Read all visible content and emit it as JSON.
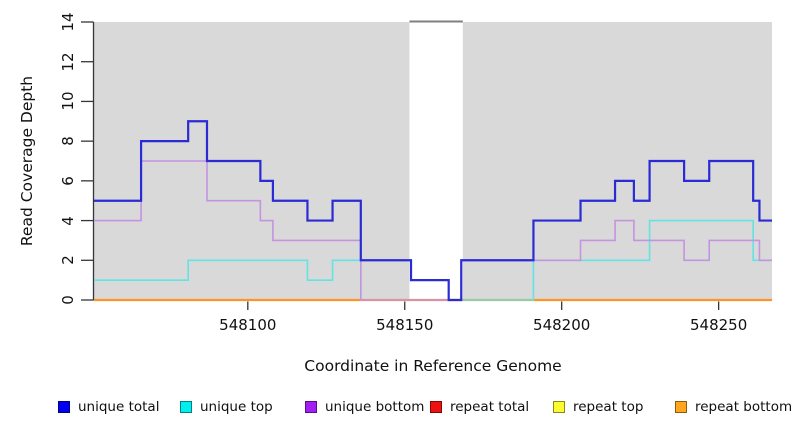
{
  "chart_data": {
    "type": "line",
    "subtype": "step-coverage",
    "title": "",
    "xlabel": "Coordinate in Reference Genome",
    "ylabel": "Read Coverage Depth",
    "xlim": [
      548051,
      548267
    ],
    "ylim": [
      0,
      14
    ],
    "yticks": [
      0,
      2,
      4,
      6,
      8,
      10,
      12,
      14
    ],
    "xticks": [
      548100,
      548150,
      548200,
      548250
    ],
    "grid": false,
    "plot_bg": "#d9d9d9",
    "gap_band": {
      "from": 548151.5,
      "to": 548168.5,
      "color": "#ffffff",
      "top_border": "#7f7f7f"
    },
    "axis_color": "#333639",
    "legend_position": "bottom",
    "series": [
      {
        "name": "unique total",
        "color": "#2b2bd5",
        "legend_color": "#0000f0",
        "width": 2.2,
        "steps": [
          [
            548051,
            5
          ],
          [
            548066,
            8
          ],
          [
            548081,
            9
          ],
          [
            548087,
            7
          ],
          [
            548104,
            6
          ],
          [
            548108,
            5
          ],
          [
            548119,
            4
          ],
          [
            548127,
            5
          ],
          [
            548136,
            2
          ],
          [
            548152,
            1
          ],
          [
            548164,
            0
          ],
          [
            548168,
            2
          ],
          [
            548191,
            4
          ],
          [
            548206,
            5
          ],
          [
            548217,
            6
          ],
          [
            548223,
            5
          ],
          [
            548228,
            7
          ],
          [
            548239,
            6
          ],
          [
            548247,
            7
          ],
          [
            548261,
            5
          ],
          [
            548263,
            4
          ]
        ]
      },
      {
        "name": "unique top",
        "color": "#63e3e3",
        "legend_color": "#00eeee",
        "width": 1.6,
        "steps": [
          [
            548051,
            1
          ],
          [
            548081,
            2
          ],
          [
            548119,
            1
          ],
          [
            548127,
            2
          ],
          [
            548152,
            1
          ],
          [
            548164,
            0
          ],
          [
            548191,
            2
          ],
          [
            548228,
            4
          ],
          [
            548261,
            2
          ]
        ]
      },
      {
        "name": "unique bottom",
        "color": "#c493e1",
        "legend_color": "#a11ff0",
        "width": 1.6,
        "steps": [
          [
            548051,
            4
          ],
          [
            548066,
            7
          ],
          [
            548087,
            5
          ],
          [
            548104,
            4
          ],
          [
            548108,
            3
          ],
          [
            548136,
            0
          ],
          [
            548168,
            2
          ],
          [
            548206,
            3
          ],
          [
            548217,
            4
          ],
          [
            548223,
            3
          ],
          [
            548239,
            2
          ],
          [
            548247,
            3
          ],
          [
            548263,
            2
          ]
        ]
      },
      {
        "name": "repeat total",
        "color": "#d42a2a",
        "legend_color": "#ee1111",
        "width": 1.5,
        "steps": [
          [
            548051,
            0
          ]
        ]
      },
      {
        "name": "repeat top",
        "color": "#efe23e",
        "legend_color": "#fbfb30",
        "width": 1.5,
        "steps": [
          [
            548051,
            0
          ]
        ]
      },
      {
        "name": "repeat bottom",
        "color": "#ff9426",
        "legend_color": "#ffa51e",
        "width": 2.2,
        "steps": [
          [
            548051,
            0
          ]
        ]
      }
    ],
    "draw_order": [
      3,
      4,
      5,
      1,
      2,
      0
    ]
  }
}
